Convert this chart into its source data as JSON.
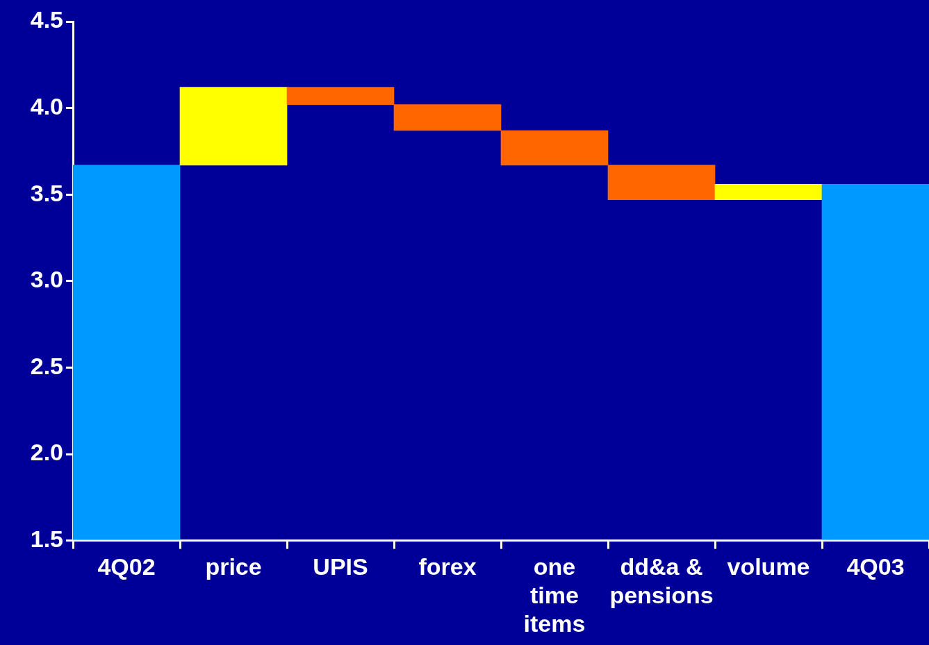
{
  "chart_data": {
    "type": "bar",
    "categories": [
      "4Q02",
      "price",
      "UPIS",
      "forex",
      "one time items",
      "dd&a & pensions",
      "volume",
      "4Q03"
    ],
    "values": [
      3.67,
      0.45,
      -0.1,
      -0.15,
      -0.2,
      -0.2,
      0.09,
      3.56
    ],
    "base": [
      null,
      3.67,
      4.12,
      4.02,
      3.87,
      3.67,
      3.47,
      null
    ],
    "colors": [
      "#0099ff",
      "#ffff00",
      "#ff6600",
      "#ff6600",
      "#ff6600",
      "#ff6600",
      "#ffff00",
      "#0099ff"
    ],
    "ylim": [
      1.5,
      4.5
    ],
    "yticks": [
      1.5,
      {
        "value": 2,
        "label": "2.0"
      },
      2.5,
      {
        "value": 3,
        "label": "3.0"
      },
      3.5,
      {
        "value": 4,
        "label": "4.0"
      },
      4.5
    ],
    "grid": false,
    "legend": false
  }
}
